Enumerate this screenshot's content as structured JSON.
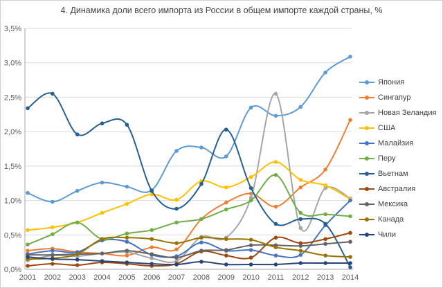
{
  "title": "4. Динамика доли всего импорта из России в общем импорте каждой страны, %",
  "chart_data": {
    "type": "line",
    "smooth": true,
    "marker": "circle",
    "grid": true,
    "legend_position": "right",
    "x": [
      2001,
      2002,
      2003,
      2004,
      2005,
      2006,
      2007,
      2008,
      2009,
      2010,
      2011,
      2012,
      2013,
      2014
    ],
    "ylim": [
      0,
      3.5
    ],
    "ytick_step": 0.5,
    "yticks": [
      "0,0%",
      "0,5%",
      "1,0%",
      "1,5%",
      "2,0%",
      "2,5%",
      "3,0%",
      "3,5%"
    ],
    "axis_color": "#a6a6a6",
    "grid_color": "#d9d9d9",
    "tick_label_color": "#595959",
    "series": [
      {
        "name": "Япония",
        "color": "#5B9BD5",
        "values": [
          1.11,
          0.98,
          1.14,
          1.26,
          1.2,
          1.15,
          1.72,
          1.77,
          1.64,
          2.35,
          2.23,
          2.36,
          2.86,
          3.09
        ]
      },
      {
        "name": "Сингапур",
        "color": "#ED7D31",
        "values": [
          0.27,
          0.3,
          0.25,
          0.23,
          0.2,
          0.32,
          0.29,
          0.73,
          0.97,
          1.1,
          0.91,
          1.19,
          1.45,
          2.17
        ]
      },
      {
        "name": "Новая Зеландия",
        "color": "#A5A5A5",
        "values": [
          0.13,
          0.2,
          0.19,
          0.23,
          0.25,
          0.16,
          0.12,
          0.47,
          0.46,
          1.04,
          2.55,
          0.6,
          1.18,
          1.03
        ]
      },
      {
        "name": "США",
        "color": "#FFC000",
        "values": [
          0.57,
          0.61,
          0.68,
          0.82,
          0.95,
          1.09,
          1.01,
          1.28,
          1.19,
          1.34,
          1.56,
          1.3,
          1.22,
          1.02
        ]
      },
      {
        "name": "Малайзия",
        "color": "#4472C4",
        "values": [
          0.22,
          0.27,
          0.25,
          0.42,
          0.4,
          0.21,
          0.19,
          0.39,
          0.27,
          0.28,
          0.2,
          0.21,
          0.64,
          1.0
        ]
      },
      {
        "name": "Перу",
        "color": "#70AD47",
        "values": [
          0.36,
          0.51,
          0.68,
          0.44,
          0.52,
          0.57,
          0.68,
          0.73,
          0.87,
          1.0,
          1.37,
          0.82,
          0.8,
          0.77
        ]
      },
      {
        "name": "Вьетнам",
        "color": "#255E91",
        "values": [
          2.34,
          2.55,
          1.96,
          2.12,
          2.1,
          1.14,
          0.88,
          1.24,
          2.03,
          1.18,
          0.66,
          0.73,
          0.66,
          0.03
        ]
      },
      {
        "name": "Австралия",
        "color": "#9E480E",
        "values": [
          0.05,
          0.08,
          0.06,
          0.1,
          0.08,
          0.05,
          0.08,
          0.26,
          0.2,
          0.17,
          0.46,
          0.38,
          0.44,
          0.53
        ]
      },
      {
        "name": "Мексика",
        "color": "#636363",
        "values": [
          0.21,
          0.21,
          0.22,
          0.23,
          0.27,
          0.22,
          0.17,
          0.27,
          0.28,
          0.35,
          0.35,
          0.34,
          0.37,
          0.4
        ]
      },
      {
        "name": "Канада",
        "color": "#997300",
        "values": [
          0.15,
          0.16,
          0.22,
          0.44,
          0.46,
          0.44,
          0.38,
          0.46,
          0.44,
          0.43,
          0.32,
          0.27,
          0.2,
          0.18
        ]
      },
      {
        "name": "Чили",
        "color": "#264478",
        "values": [
          0.18,
          0.15,
          0.14,
          0.12,
          0.1,
          0.08,
          0.07,
          0.11,
          0.07,
          0.07,
          0.07,
          0.09,
          0.09,
          0.09
        ]
      }
    ]
  }
}
